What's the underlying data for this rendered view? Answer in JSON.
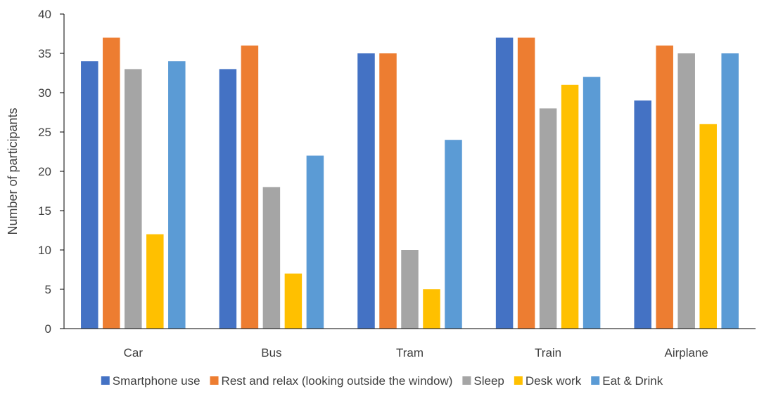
{
  "chart_data": {
    "type": "bar",
    "title": "",
    "xlabel": "",
    "ylabel": "Number of participants",
    "ylim": [
      0,
      40
    ],
    "yticks": [
      0,
      5,
      10,
      15,
      20,
      25,
      30,
      35,
      40
    ],
    "categories": [
      "Car",
      "Bus",
      "Tram",
      "Train",
      "Airplane"
    ],
    "series": [
      {
        "name": "Smartphone use",
        "color": "#4472C4",
        "values": [
          34,
          33,
          35,
          37,
          29
        ]
      },
      {
        "name": "Rest and relax (looking outside the window)",
        "color": "#ED7D31",
        "values": [
          37,
          36,
          35,
          37,
          36
        ]
      },
      {
        "name": "Sleep",
        "color": "#A5A5A5",
        "values": [
          33,
          18,
          10,
          28,
          35
        ]
      },
      {
        "name": "Desk work",
        "color": "#FFC000",
        "values": [
          12,
          7,
          5,
          31,
          26
        ]
      },
      {
        "name": "Eat & Drink",
        "color": "#5B9BD5",
        "values": [
          34,
          22,
          24,
          32,
          35
        ]
      }
    ],
    "grid": false,
    "legend_position": "bottom"
  }
}
